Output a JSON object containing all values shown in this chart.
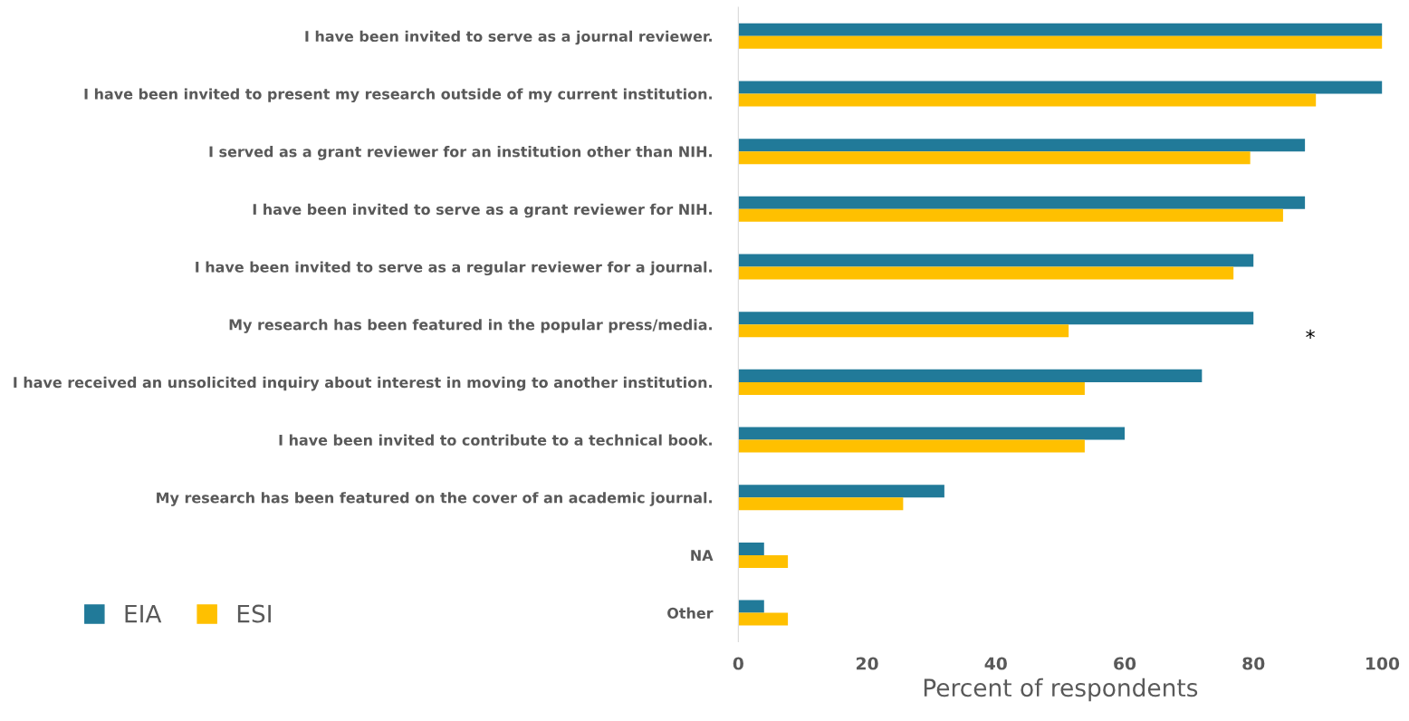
{
  "chart_data": {
    "type": "bar",
    "orientation": "horizontal",
    "xlabel": "Percent of respondents",
    "categories": [
      "I have been invited to serve as a journal reviewer.",
      "I have been invited to present my research outside of my current institution.",
      "I served as a grant reviewer for an institution other than NIH.",
      "I have been invited to serve as a grant reviewer for NIH.",
      "I have been invited to serve as a regular reviewer for a journal.",
      "My research has been featured in the popular press/media.",
      "I have received an unsolicited inquiry about interest in moving to another institution.",
      "I have been invited to contribute to a technical book.",
      "My research has been featured on the cover of an academic journal.",
      "NA",
      "Other"
    ],
    "series": [
      {
        "name": "EIA",
        "color": "#217a99",
        "values": [
          100,
          100,
          88,
          88,
          80,
          80,
          72,
          60,
          32,
          4,
          4
        ]
      },
      {
        "name": "ESI",
        "color": "#ffc000",
        "values": [
          100,
          89.7,
          79.5,
          84.6,
          76.9,
          51.3,
          53.8,
          53.8,
          25.6,
          7.7,
          7.7
        ]
      }
    ],
    "xlim": [
      0,
      100
    ],
    "xticks": [
      0,
      20,
      40,
      60,
      80,
      100
    ],
    "grid": false,
    "legend": "bottom left",
    "annotations": [
      "*"
    ]
  }
}
